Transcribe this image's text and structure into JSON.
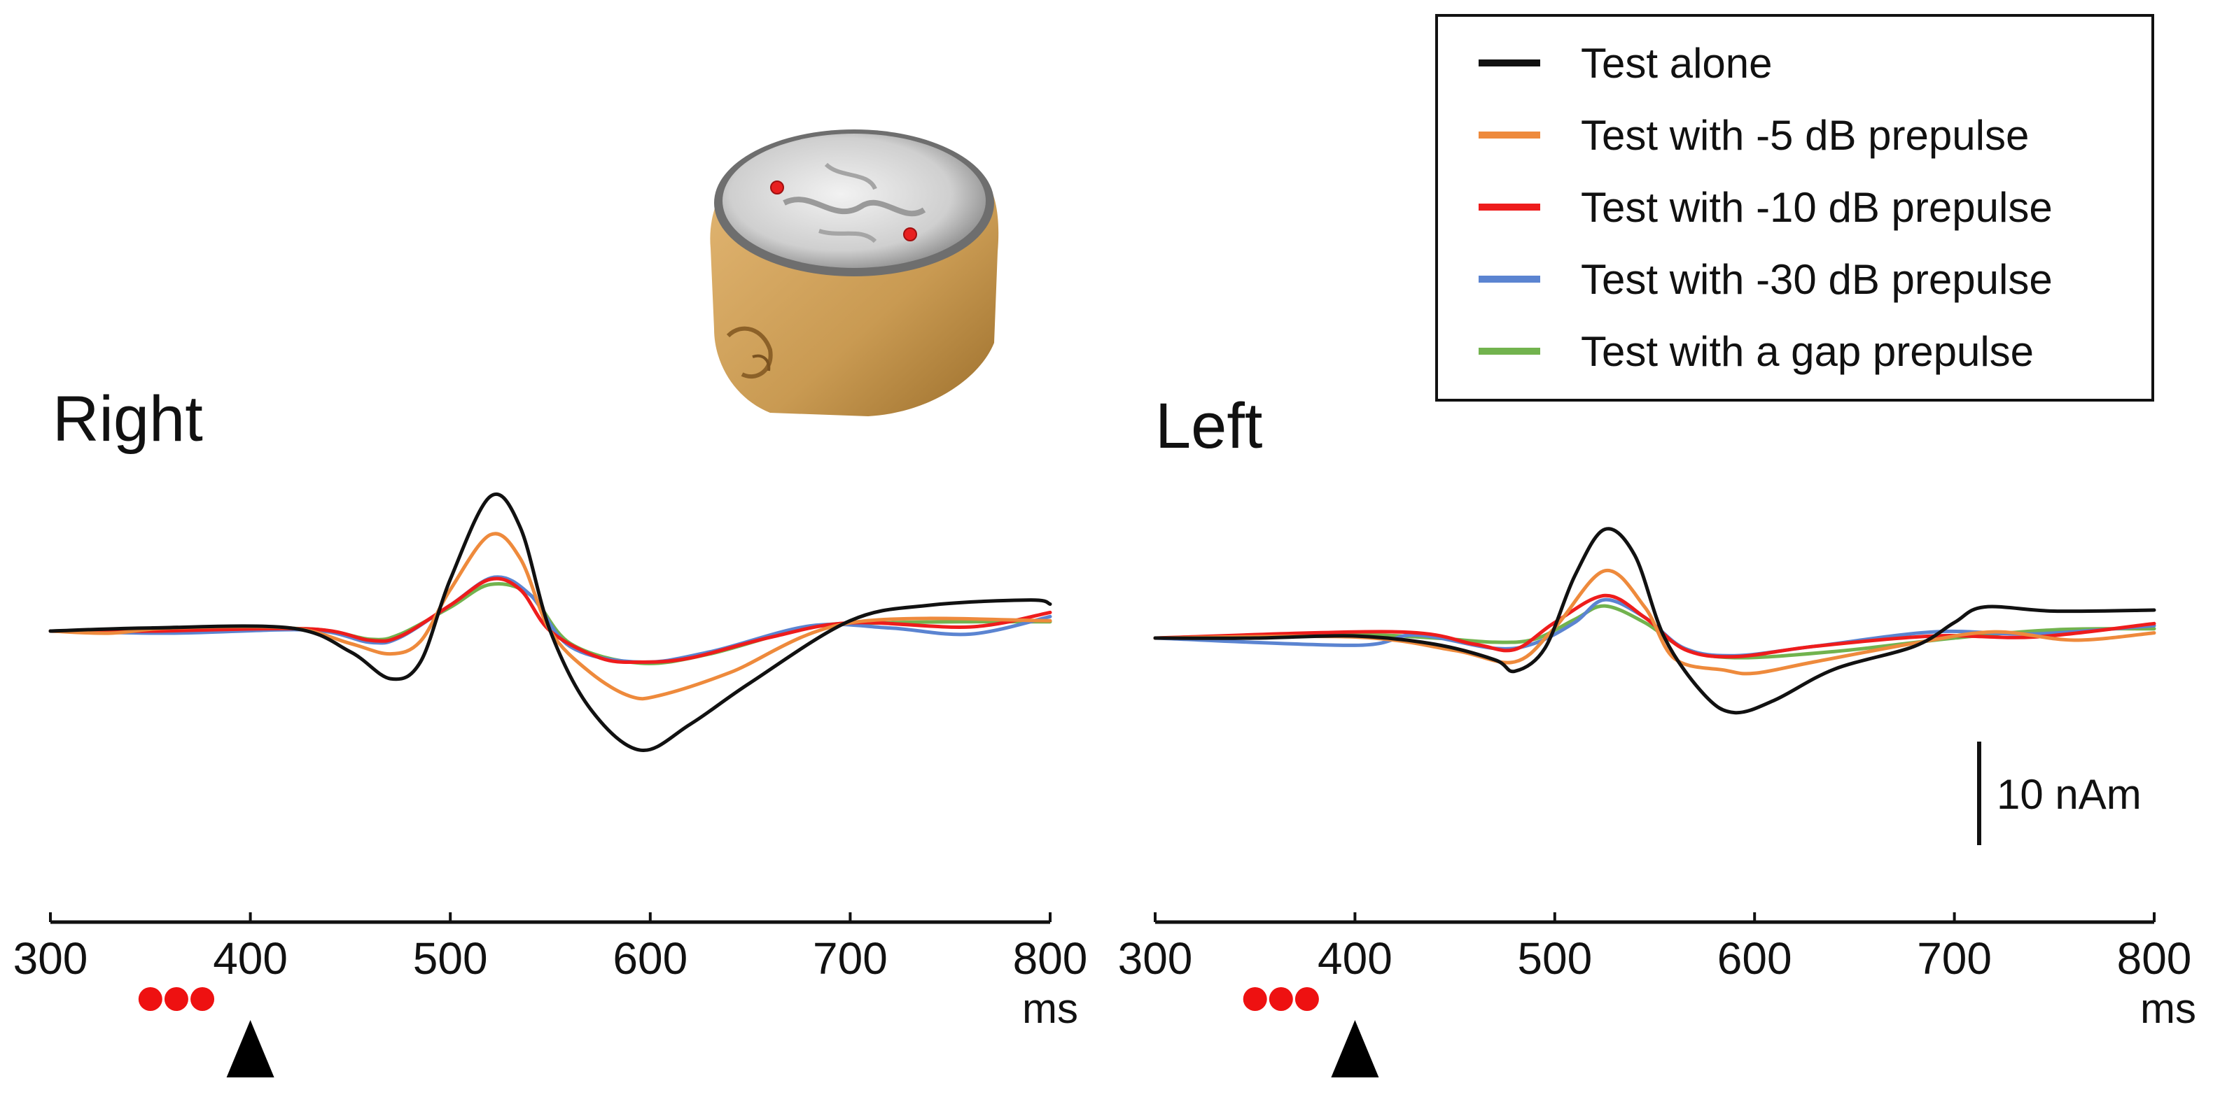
{
  "chart_data": {
    "type": "line",
    "x_unit": "ms",
    "xlim": [
      300,
      800
    ],
    "ticks": [
      300,
      400,
      500,
      600,
      700,
      800
    ],
    "y_unit": "nAm",
    "scale_bar": {
      "value": 10,
      "label": "10 nAm"
    },
    "legend": [
      {
        "name": "Test alone",
        "color": "#111111"
      },
      {
        "name": "Test with -5 dB prepulse",
        "color": "#ee8a3c"
      },
      {
        "name": "Test with -10 dB prepulse",
        "color": "#ee1c1c"
      },
      {
        "name": "Test with -30 dB prepulse",
        "color": "#5b84d1"
      },
      {
        "name": "Test with a gap prepulse",
        "color": "#72b34e"
      }
    ],
    "prepulse_marker_times": [
      350,
      363,
      376
    ],
    "test_stimulus_time": 400,
    "panels": [
      {
        "title": "Right",
        "series": [
          {
            "name": "Test alone",
            "points": [
              [
                300,
                0
              ],
              [
                350,
                0.3
              ],
              [
                420,
                0.3
              ],
              [
                450,
                -2
              ],
              [
                470,
                -4.6
              ],
              [
                485,
                -3
              ],
              [
                500,
                5
              ],
              [
                520,
                13
              ],
              [
                535,
                10
              ],
              [
                550,
                0
              ],
              [
                570,
                -7.5
              ],
              [
                595,
                -11.5
              ],
              [
                620,
                -9
              ],
              [
                650,
                -5
              ],
              [
                700,
                1
              ],
              [
                740,
                2.5
              ],
              [
                790,
                3
              ],
              [
                800,
                2.6
              ]
            ]
          },
          {
            "name": "Test with -5 dB prepulse",
            "points": [
              [
                300,
                0
              ],
              [
                330,
                -0.2
              ],
              [
                360,
                0.3
              ],
              [
                420,
                0.3
              ],
              [
                450,
                -1.2
              ],
              [
                470,
                -2.2
              ],
              [
                485,
                -1
              ],
              [
                500,
                4
              ],
              [
                520,
                9.3
              ],
              [
                535,
                7
              ],
              [
                550,
                0
              ],
              [
                570,
                -4
              ],
              [
                590,
                -6.3
              ],
              [
                605,
                -6.2
              ],
              [
                640,
                -4
              ],
              [
                700,
                0.8
              ],
              [
                800,
                1
              ]
            ]
          },
          {
            "name": "Test with -10 dB prepulse",
            "points": [
              [
                300,
                0
              ],
              [
                350,
                0
              ],
              [
                430,
                0.2
              ],
              [
                460,
                -0.9
              ],
              [
                475,
                -0.5
              ],
              [
                500,
                2.5
              ],
              [
                520,
                5
              ],
              [
                535,
                4
              ],
              [
                550,
                0
              ],
              [
                575,
                -2.6
              ],
              [
                595,
                -3
              ],
              [
                620,
                -2.6
              ],
              [
                660,
                -0.6
              ],
              [
                700,
                0.8
              ],
              [
                760,
                0.4
              ],
              [
                800,
                1.8
              ]
            ]
          },
          {
            "name": "Test with -30 dB prepulse",
            "points": [
              [
                300,
                0
              ],
              [
                360,
                -0.2
              ],
              [
                430,
                0.1
              ],
              [
                460,
                -1.1
              ],
              [
                475,
                -0.6
              ],
              [
                500,
                2.5
              ],
              [
                522,
                5.2
              ],
              [
                540,
                3.5
              ],
              [
                560,
                -1.5
              ],
              [
                595,
                -3
              ],
              [
                630,
                -2
              ],
              [
                680,
                0.5
              ],
              [
                720,
                0.3
              ],
              [
                760,
                -0.3
              ],
              [
                800,
                1.4
              ]
            ]
          },
          {
            "name": "Test with a gap prepulse",
            "points": [
              [
                300,
                0
              ],
              [
                360,
                0.2
              ],
              [
                430,
                0.2
              ],
              [
                460,
                -0.8
              ],
              [
                475,
                -0.3
              ],
              [
                500,
                2.3
              ],
              [
                520,
                4.5
              ],
              [
                540,
                3.5
              ],
              [
                560,
                -1.2
              ],
              [
                595,
                -3.1
              ],
              [
                630,
                -2.2
              ],
              [
                680,
                0.4
              ],
              [
                720,
                0.8
              ],
              [
                760,
                0.9
              ],
              [
                800,
                0.9
              ]
            ]
          }
        ]
      },
      {
        "title": "Left",
        "series": [
          {
            "name": "Test alone",
            "points": [
              [
                300,
                0
              ],
              [
                350,
                0
              ],
              [
                400,
                0.2
              ],
              [
                440,
                -0.6
              ],
              [
                470,
                -2.1
              ],
              [
                480,
                -3.2
              ],
              [
                495,
                -1
              ],
              [
                510,
                6
              ],
              [
                525,
                10.5
              ],
              [
                540,
                8
              ],
              [
                555,
                0
              ],
              [
                575,
                -5.5
              ],
              [
                590,
                -7.2
              ],
              [
                610,
                -6
              ],
              [
                640,
                -3
              ],
              [
                680,
                -0.8
              ],
              [
                700,
                1.5
              ],
              [
                715,
                3
              ],
              [
                750,
                2.6
              ],
              [
                800,
                2.7
              ]
            ]
          },
          {
            "name": "Test with -5 dB prepulse",
            "points": [
              [
                300,
                0
              ],
              [
                400,
                0.1
              ],
              [
                450,
                -1.2
              ],
              [
                480,
                -2.3
              ],
              [
                500,
                1
              ],
              [
                525,
                6.5
              ],
              [
                545,
                3
              ],
              [
                560,
                -2
              ],
              [
                585,
                -3.1
              ],
              [
                600,
                -3.4
              ],
              [
                630,
                -2.3
              ],
              [
                680,
                -0.5
              ],
              [
                720,
                0.6
              ],
              [
                760,
                -0.2
              ],
              [
                800,
                0.5
              ]
            ]
          },
          {
            "name": "Test with -10 dB prepulse",
            "points": [
              [
                300,
                0
              ],
              [
                420,
                0.6
              ],
              [
                460,
                -0.6
              ],
              [
                480,
                -1.1
              ],
              [
                500,
                1.5
              ],
              [
                525,
                4.1
              ],
              [
                545,
                2
              ],
              [
                565,
                -1.1
              ],
              [
                590,
                -1.8
              ],
              [
                630,
                -0.8
              ],
              [
                690,
                0.2
              ],
              [
                740,
                0.1
              ],
              [
                800,
                1.4
              ]
            ]
          },
          {
            "name": "Test with -30 dB prepulse",
            "points": [
              [
                300,
                0
              ],
              [
                400,
                -0.7
              ],
              [
                430,
                0.3
              ],
              [
                470,
                -1
              ],
              [
                490,
                -0.5
              ],
              [
                510,
                1.5
              ],
              [
                525,
                3.7
              ],
              [
                545,
                2
              ],
              [
                565,
                -1
              ],
              [
                590,
                -1.7
              ],
              [
                630,
                -0.8
              ],
              [
                690,
                0.6
              ],
              [
                740,
                0.4
              ],
              [
                800,
                1.2
              ]
            ]
          },
          {
            "name": "Test with a gap prepulse",
            "points": [
              [
                300,
                0
              ],
              [
                400,
                0.3
              ],
              [
                440,
                0
              ],
              [
                470,
                -0.4
              ],
              [
                490,
                -0.1
              ],
              [
                510,
                1.8
              ],
              [
                525,
                3.1
              ],
              [
                545,
                1.5
              ],
              [
                565,
                -1
              ],
              [
                590,
                -1.9
              ],
              [
                640,
                -1.3
              ],
              [
                700,
                0
              ],
              [
                750,
                0.8
              ],
              [
                800,
                0.9
              ]
            ]
          }
        ]
      }
    ]
  }
}
